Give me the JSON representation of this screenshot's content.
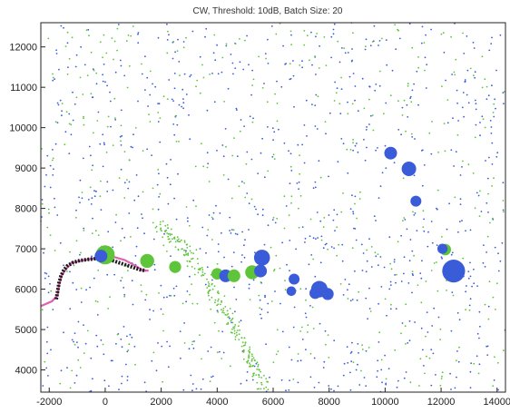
{
  "chart_data": {
    "type": "scatter",
    "title": "CW,  Threshold: 10dB,  Batch Size: 20",
    "xlabel": "",
    "ylabel": "",
    "xlim": [
      -2300,
      14300
    ],
    "ylim": [
      3450,
      12600
    ],
    "xticks": [
      -2000,
      0,
      2000,
      4000,
      6000,
      8000,
      10000,
      12000,
      14000
    ],
    "yticks": [
      4000,
      5000,
      6000,
      7000,
      8000,
      9000,
      10000,
      11000,
      12000
    ],
    "xtick_labels": [
      "-2000",
      "0",
      "2000",
      "4000",
      "6000",
      "8000",
      "10000",
      "12000",
      "14000"
    ],
    "ytick_labels": [
      "4000",
      "5000",
      "6000",
      "7000",
      "8000",
      "9000",
      "10000",
      "11000",
      "12000"
    ],
    "grid": false,
    "colors": {
      "blue": "#3a5cd8",
      "green": "#5ec43a",
      "track_magenta": "#e060b0",
      "track_black": "#1a1a1a"
    },
    "background_points": {
      "blue_count": 900,
      "green_count": 700,
      "note_seeded_noise": false
    },
    "large_markers": [
      {
        "color": "blue",
        "x": 10200,
        "y": 9370,
        "size": 1.0
      },
      {
        "color": "blue",
        "x": 10850,
        "y": 8980,
        "size": 1.15
      },
      {
        "color": "blue",
        "x": 11100,
        "y": 8180,
        "size": 0.85
      },
      {
        "color": "green",
        "x": 12150,
        "y": 6980,
        "size": 0.9
      },
      {
        "color": "blue",
        "x": 12050,
        "y": 7000,
        "size": 0.8
      },
      {
        "color": "blue",
        "x": 12450,
        "y": 6450,
        "size": 1.8
      },
      {
        "color": "green",
        "x": 0,
        "y": 6850,
        "size": 1.5
      },
      {
        "color": "blue",
        "x": -150,
        "y": 6820,
        "size": 1.0
      },
      {
        "color": "green",
        "x": 1500,
        "y": 6700,
        "size": 1.1
      },
      {
        "color": "green",
        "x": 2500,
        "y": 6550,
        "size": 0.95
      },
      {
        "color": "green",
        "x": 4000,
        "y": 6380,
        "size": 0.9
      },
      {
        "color": "blue",
        "x": 4300,
        "y": 6330,
        "size": 1.0
      },
      {
        "color": "green",
        "x": 4600,
        "y": 6330,
        "size": 1.0
      },
      {
        "color": "green",
        "x": 5250,
        "y": 6420,
        "size": 1.1
      },
      {
        "color": "blue",
        "x": 5550,
        "y": 6450,
        "size": 1.0
      },
      {
        "color": "blue",
        "x": 5600,
        "y": 6780,
        "size": 1.25
      },
      {
        "color": "blue",
        "x": 6750,
        "y": 6250,
        "size": 0.85
      },
      {
        "color": "blue",
        "x": 6650,
        "y": 5950,
        "size": 0.75
      },
      {
        "color": "blue",
        "x": 7650,
        "y": 6000,
        "size": 1.3
      },
      {
        "color": "blue",
        "x": 7500,
        "y": 5900,
        "size": 0.9
      },
      {
        "color": "blue",
        "x": 7950,
        "y": 5880,
        "size": 0.95
      }
    ],
    "track_magenta": [
      [
        -2300,
        5580
      ],
      [
        -1900,
        5700
      ],
      [
        -1700,
        5850
      ],
      [
        -1650,
        6100
      ],
      [
        -1550,
        6350
      ],
      [
        -1400,
        6500
      ],
      [
        -1200,
        6650
      ],
      [
        -900,
        6700
      ],
      [
        -500,
        6750
      ],
      [
        -100,
        6780
      ],
      [
        300,
        6800
      ],
      [
        700,
        6720
      ],
      [
        1100,
        6570
      ],
      [
        1350,
        6460
      ],
      [
        1550,
        6460
      ]
    ],
    "track_black": [
      [
        -1750,
        5750
      ],
      [
        -1700,
        5950
      ],
      [
        -1650,
        6150
      ],
      [
        -1580,
        6330
      ],
      [
        -1480,
        6470
      ],
      [
        -1350,
        6580
      ],
      [
        -1150,
        6660
      ],
      [
        -900,
        6710
      ],
      [
        -600,
        6740
      ],
      [
        -300,
        6760
      ],
      [
        0,
        6770
      ],
      [
        1250,
        6480
      ],
      [
        1450,
        6460
      ]
    ]
  }
}
